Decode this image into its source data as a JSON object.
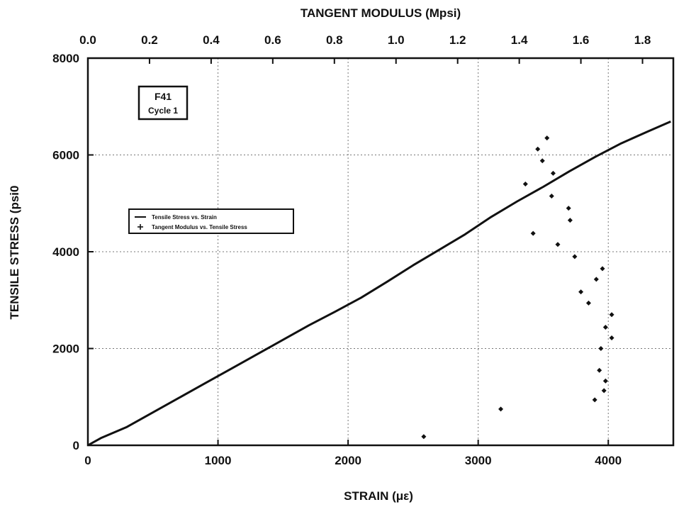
{
  "chart_data": {
    "type": "scatter",
    "title": "",
    "annotation": {
      "line1": "F41",
      "line2": "Cycle 1"
    },
    "xlabel_bottom": "STRAIN (με)",
    "xlabel_top": "TANGENT MODULUS (Mpsi)",
    "ylabel": "TENSILE STRESS (psi0",
    "xlim_bottom": [
      0,
      4500
    ],
    "xlim_top": [
      0,
      1.9
    ],
    "ylim": [
      0,
      8000
    ],
    "xticks_bottom": [
      "0",
      "1000",
      "2000",
      "3000",
      "4000"
    ],
    "xticks_top": [
      "0.0",
      "0.2",
      "0.4",
      "0.6",
      "0.8",
      "1.0",
      "1.2",
      "1.4",
      "1.6",
      "1.8"
    ],
    "yticks": [
      "0",
      "2000",
      "4000",
      "6000",
      "8000"
    ],
    "grid": true,
    "legend_position": "middle-left",
    "series": [
      {
        "name": "Tensile Stress vs. Strain",
        "style": "line",
        "axis": "bottom",
        "x": [
          0,
          100,
          300,
          500,
          700,
          900,
          1100,
          1300,
          1500,
          1700,
          1900,
          2100,
          2300,
          2500,
          2700,
          2900,
          3100,
          3300,
          3500,
          3700,
          3900,
          4100,
          4300,
          4480
        ],
        "y": [
          0,
          150,
          380,
          680,
          980,
          1280,
          1580,
          1880,
          2180,
          2480,
          2760,
          3050,
          3380,
          3720,
          4040,
          4360,
          4720,
          5040,
          5340,
          5660,
          5960,
          6240,
          6480,
          6690
        ]
      },
      {
        "name": "Tangent Modulus vs. Tensile Stress",
        "style": "markers",
        "axis": "top",
        "x": [
          1.09,
          1.34,
          1.42,
          1.445,
          1.46,
          1.475,
          1.49,
          1.505,
          1.51,
          1.525,
          1.56,
          1.565,
          1.58,
          1.6,
          1.625,
          1.645,
          1.65,
          1.66,
          1.665,
          1.67,
          1.675,
          1.68,
          1.68,
          1.7,
          1.7
        ],
        "y": [
          180,
          750,
          5400,
          4380,
          6120,
          5880,
          6350,
          5150,
          5620,
          4150,
          4900,
          4650,
          3900,
          3170,
          2940,
          940,
          3430,
          1550,
          2000,
          3650,
          1130,
          1330,
          2440,
          2220,
          2700
        ]
      }
    ]
  }
}
